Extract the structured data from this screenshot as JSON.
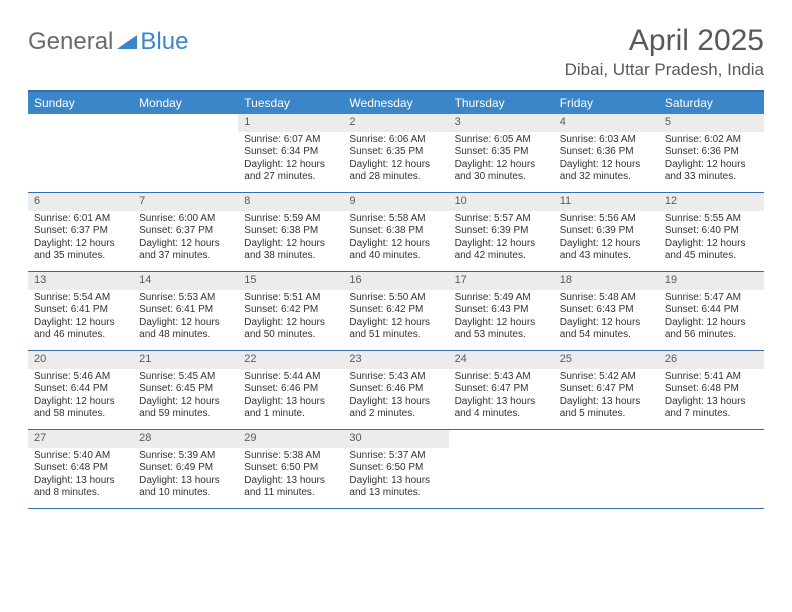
{
  "logo": {
    "part1": "General",
    "part2": "Blue"
  },
  "title": "April 2025",
  "location": "Dibai, Uttar Pradesh, India",
  "colors": {
    "header_bg": "#3a86c8",
    "border": "#356fa8",
    "daynum_bg": "#ececec",
    "text": "#333333",
    "title_text": "#595959"
  },
  "day_headers": [
    "Sunday",
    "Monday",
    "Tuesday",
    "Wednesday",
    "Thursday",
    "Friday",
    "Saturday"
  ],
  "weeks": [
    [
      {
        "n": "",
        "sr": "",
        "ss": "",
        "dl": ""
      },
      {
        "n": "",
        "sr": "",
        "ss": "",
        "dl": ""
      },
      {
        "n": "1",
        "sr": "Sunrise: 6:07 AM",
        "ss": "Sunset: 6:34 PM",
        "dl": "Daylight: 12 hours and 27 minutes."
      },
      {
        "n": "2",
        "sr": "Sunrise: 6:06 AM",
        "ss": "Sunset: 6:35 PM",
        "dl": "Daylight: 12 hours and 28 minutes."
      },
      {
        "n": "3",
        "sr": "Sunrise: 6:05 AM",
        "ss": "Sunset: 6:35 PM",
        "dl": "Daylight: 12 hours and 30 minutes."
      },
      {
        "n": "4",
        "sr": "Sunrise: 6:03 AM",
        "ss": "Sunset: 6:36 PM",
        "dl": "Daylight: 12 hours and 32 minutes."
      },
      {
        "n": "5",
        "sr": "Sunrise: 6:02 AM",
        "ss": "Sunset: 6:36 PM",
        "dl": "Daylight: 12 hours and 33 minutes."
      }
    ],
    [
      {
        "n": "6",
        "sr": "Sunrise: 6:01 AM",
        "ss": "Sunset: 6:37 PM",
        "dl": "Daylight: 12 hours and 35 minutes."
      },
      {
        "n": "7",
        "sr": "Sunrise: 6:00 AM",
        "ss": "Sunset: 6:37 PM",
        "dl": "Daylight: 12 hours and 37 minutes."
      },
      {
        "n": "8",
        "sr": "Sunrise: 5:59 AM",
        "ss": "Sunset: 6:38 PM",
        "dl": "Daylight: 12 hours and 38 minutes."
      },
      {
        "n": "9",
        "sr": "Sunrise: 5:58 AM",
        "ss": "Sunset: 6:38 PM",
        "dl": "Daylight: 12 hours and 40 minutes."
      },
      {
        "n": "10",
        "sr": "Sunrise: 5:57 AM",
        "ss": "Sunset: 6:39 PM",
        "dl": "Daylight: 12 hours and 42 minutes."
      },
      {
        "n": "11",
        "sr": "Sunrise: 5:56 AM",
        "ss": "Sunset: 6:39 PM",
        "dl": "Daylight: 12 hours and 43 minutes."
      },
      {
        "n": "12",
        "sr": "Sunrise: 5:55 AM",
        "ss": "Sunset: 6:40 PM",
        "dl": "Daylight: 12 hours and 45 minutes."
      }
    ],
    [
      {
        "n": "13",
        "sr": "Sunrise: 5:54 AM",
        "ss": "Sunset: 6:41 PM",
        "dl": "Daylight: 12 hours and 46 minutes."
      },
      {
        "n": "14",
        "sr": "Sunrise: 5:53 AM",
        "ss": "Sunset: 6:41 PM",
        "dl": "Daylight: 12 hours and 48 minutes."
      },
      {
        "n": "15",
        "sr": "Sunrise: 5:51 AM",
        "ss": "Sunset: 6:42 PM",
        "dl": "Daylight: 12 hours and 50 minutes."
      },
      {
        "n": "16",
        "sr": "Sunrise: 5:50 AM",
        "ss": "Sunset: 6:42 PM",
        "dl": "Daylight: 12 hours and 51 minutes."
      },
      {
        "n": "17",
        "sr": "Sunrise: 5:49 AM",
        "ss": "Sunset: 6:43 PM",
        "dl": "Daylight: 12 hours and 53 minutes."
      },
      {
        "n": "18",
        "sr": "Sunrise: 5:48 AM",
        "ss": "Sunset: 6:43 PM",
        "dl": "Daylight: 12 hours and 54 minutes."
      },
      {
        "n": "19",
        "sr": "Sunrise: 5:47 AM",
        "ss": "Sunset: 6:44 PM",
        "dl": "Daylight: 12 hours and 56 minutes."
      }
    ],
    [
      {
        "n": "20",
        "sr": "Sunrise: 5:46 AM",
        "ss": "Sunset: 6:44 PM",
        "dl": "Daylight: 12 hours and 58 minutes."
      },
      {
        "n": "21",
        "sr": "Sunrise: 5:45 AM",
        "ss": "Sunset: 6:45 PM",
        "dl": "Daylight: 12 hours and 59 minutes."
      },
      {
        "n": "22",
        "sr": "Sunrise: 5:44 AM",
        "ss": "Sunset: 6:46 PM",
        "dl": "Daylight: 13 hours and 1 minute."
      },
      {
        "n": "23",
        "sr": "Sunrise: 5:43 AM",
        "ss": "Sunset: 6:46 PM",
        "dl": "Daylight: 13 hours and 2 minutes."
      },
      {
        "n": "24",
        "sr": "Sunrise: 5:43 AM",
        "ss": "Sunset: 6:47 PM",
        "dl": "Daylight: 13 hours and 4 minutes."
      },
      {
        "n": "25",
        "sr": "Sunrise: 5:42 AM",
        "ss": "Sunset: 6:47 PM",
        "dl": "Daylight: 13 hours and 5 minutes."
      },
      {
        "n": "26",
        "sr": "Sunrise: 5:41 AM",
        "ss": "Sunset: 6:48 PM",
        "dl": "Daylight: 13 hours and 7 minutes."
      }
    ],
    [
      {
        "n": "27",
        "sr": "Sunrise: 5:40 AM",
        "ss": "Sunset: 6:48 PM",
        "dl": "Daylight: 13 hours and 8 minutes."
      },
      {
        "n": "28",
        "sr": "Sunrise: 5:39 AM",
        "ss": "Sunset: 6:49 PM",
        "dl": "Daylight: 13 hours and 10 minutes."
      },
      {
        "n": "29",
        "sr": "Sunrise: 5:38 AM",
        "ss": "Sunset: 6:50 PM",
        "dl": "Daylight: 13 hours and 11 minutes."
      },
      {
        "n": "30",
        "sr": "Sunrise: 5:37 AM",
        "ss": "Sunset: 6:50 PM",
        "dl": "Daylight: 13 hours and 13 minutes."
      },
      {
        "n": "",
        "sr": "",
        "ss": "",
        "dl": ""
      },
      {
        "n": "",
        "sr": "",
        "ss": "",
        "dl": ""
      },
      {
        "n": "",
        "sr": "",
        "ss": "",
        "dl": ""
      }
    ]
  ]
}
